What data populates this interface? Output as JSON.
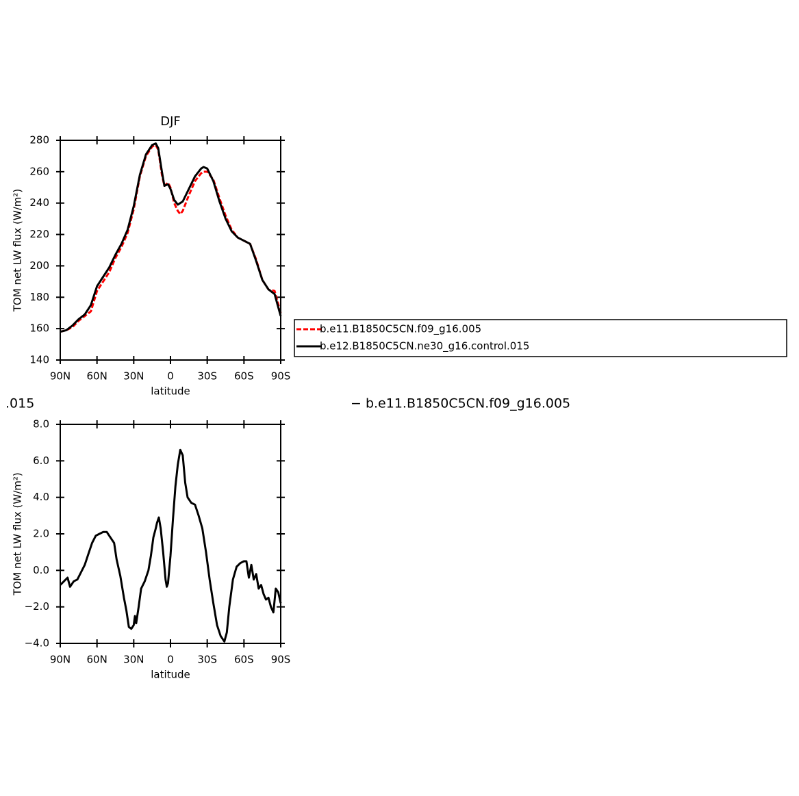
{
  "chart_data": [
    {
      "type": "line",
      "title": "DJF",
      "x_label": "latitude",
      "y_label": "TOM net LW flux (W/m²)",
      "x": [
        90,
        85,
        80,
        75,
        70,
        65,
        60,
        55,
        50,
        45,
        40,
        35,
        30,
        25,
        20,
        15,
        12,
        10,
        7,
        5,
        2,
        0,
        -3,
        -6,
        -8,
        -10,
        -15,
        -20,
        -25,
        -27,
        -30,
        -35,
        -40,
        -45,
        -50,
        -55,
        -60,
        -65,
        -70,
        -75,
        -80,
        -85,
        -90
      ],
      "series": [
        {
          "name": "b.e11.B1850C5CN.f09_g16.005",
          "color": "#ff0000",
          "dashed": true,
          "values": [
            158,
            159,
            161,
            165,
            168,
            171,
            184,
            190,
            196,
            205,
            212,
            221,
            236,
            257,
            270,
            276,
            277,
            274,
            258,
            251,
            253,
            250,
            240,
            235,
            233,
            235,
            245,
            254,
            259,
            260,
            260,
            255,
            243,
            232,
            223,
            218,
            216,
            214,
            204,
            191,
            185,
            184,
            170
          ]
        },
        {
          "name": "b.e12.B1850C5CN.ne30_g16.control.015",
          "color": "#000000",
          "dashed": false,
          "values": [
            158,
            159,
            162,
            166,
            169,
            175,
            187,
            193,
            199,
            207,
            214,
            223,
            238,
            258,
            271,
            277,
            278,
            275,
            260,
            251,
            252,
            249,
            242,
            239,
            240,
            241,
            249,
            257,
            262,
            263,
            262,
            254,
            241,
            230,
            222,
            218,
            216,
            214,
            203,
            191,
            185,
            182,
            168
          ]
        }
      ],
      "xlim": [
        90,
        -90
      ],
      "xticks": [
        {
          "value": 90,
          "label": "90N"
        },
        {
          "value": 60,
          "label": "60N"
        },
        {
          "value": 30,
          "label": "30N"
        },
        0,
        {
          "value": -30,
          "label": "30S"
        },
        {
          "value": -60,
          "label": "60S"
        },
        {
          "value": -90,
          "label": "90S"
        }
      ],
      "ylim": [
        140,
        280
      ],
      "yticks": [
        140,
        160,
        180,
        200,
        220,
        240,
        260,
        280
      ],
      "legend": "right"
    },
    {
      "type": "line",
      "x_label": "latitude",
      "y_label": "TOM net LW flux (W/m²)",
      "annotations": [
        ".015",
        "− b.e11.B1850C5CN.f09_g16.005"
      ],
      "x": [
        90,
        87,
        84,
        82,
        79,
        76,
        73,
        70,
        67,
        64,
        61,
        58,
        55,
        52,
        49,
        46,
        44,
        41,
        38,
        36,
        34,
        32,
        30,
        29,
        28,
        26,
        24,
        21,
        18,
        16,
        14,
        12,
        11,
        9.5,
        8,
        6,
        4,
        3,
        2,
        0,
        -2,
        -4,
        -6,
        -8,
        -10,
        -12,
        -14,
        -17,
        -20,
        -23,
        -26,
        -29,
        -32,
        -35,
        -38,
        -41,
        -44,
        -46,
        -48,
        -51,
        -54,
        -57,
        -60,
        -62,
        -64,
        -66,
        -68,
        -70,
        -72,
        -74,
        -76,
        -78,
        -80,
        -82,
        -84,
        -86,
        -88,
        -90
      ],
      "values": [
        -0.8,
        -0.6,
        -0.4,
        -0.9,
        -0.6,
        -0.5,
        -0.1,
        0.3,
        0.9,
        1.5,
        1.9,
        2.0,
        2.1,
        2.1,
        1.8,
        1.5,
        0.6,
        -0.3,
        -1.5,
        -2.2,
        -3.1,
        -3.2,
        -3.0,
        -2.5,
        -2.9,
        -2.0,
        -1.0,
        -0.6,
        0.0,
        0.8,
        1.8,
        2.3,
        2.6,
        2.9,
        2.3,
        1.0,
        -0.5,
        -0.9,
        -0.7,
        0.8,
        2.8,
        4.6,
        5.8,
        6.6,
        6.3,
        4.8,
        4.0,
        3.7,
        3.6,
        3.0,
        2.3,
        1.0,
        -0.5,
        -1.8,
        -3.0,
        -3.6,
        -3.9,
        -3.4,
        -2.0,
        -0.5,
        0.2,
        0.4,
        0.5,
        0.5,
        -0.4,
        0.3,
        -0.5,
        -0.2,
        -1.0,
        -0.8,
        -1.3,
        -1.6,
        -1.5,
        -2.0,
        -2.3,
        -1.0,
        -1.2,
        -1.8
      ],
      "color": "#000000",
      "xlim": [
        90,
        -90
      ],
      "xticks": [
        {
          "value": 90,
          "label": "90N"
        },
        {
          "value": 60,
          "label": "60N"
        },
        {
          "value": 30,
          "label": "30N"
        },
        0,
        {
          "value": -30,
          "label": "30S"
        },
        {
          "value": -60,
          "label": "60S"
        },
        {
          "value": -90,
          "label": "90S"
        }
      ],
      "ylim": [
        -4,
        8
      ],
      "yticks": [
        {
          "value": -4,
          "label": "−4.0"
        },
        {
          "value": -2,
          "label": "−2.0"
        },
        {
          "value": 0,
          "label": "0.0"
        },
        {
          "value": 2,
          "label": "2.0"
        },
        {
          "value": 4,
          "label": "4.0"
        },
        {
          "value": 6,
          "label": "6.0"
        },
        {
          "value": 8,
          "label": "8.0"
        }
      ]
    }
  ]
}
